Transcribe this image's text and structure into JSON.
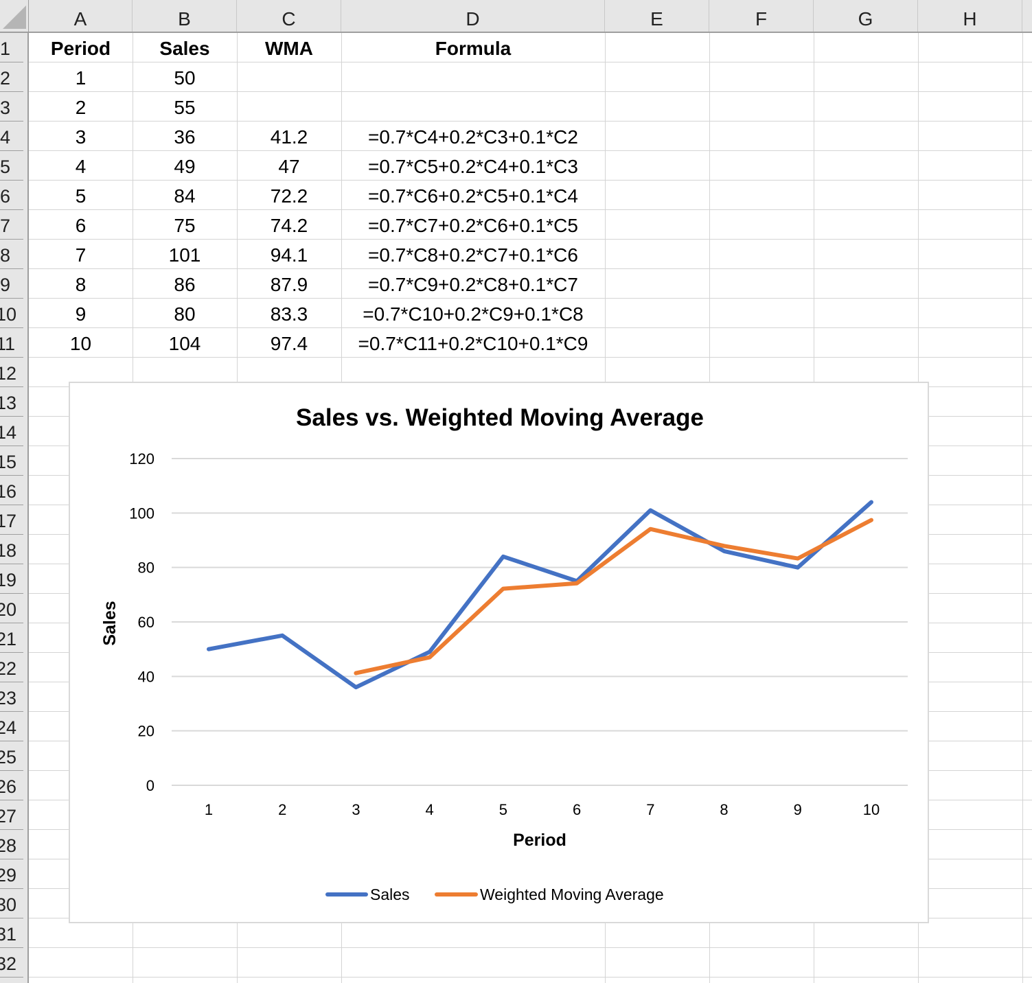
{
  "spreadsheet": {
    "columns": [
      "A",
      "B",
      "C",
      "D",
      "E",
      "F",
      "G",
      "H"
    ],
    "rows": [
      "1",
      "2",
      "3",
      "4",
      "5",
      "6",
      "7",
      "8",
      "9",
      "10",
      "11",
      "12",
      "13",
      "14",
      "15",
      "16",
      "17",
      "18",
      "19",
      "20",
      "21",
      "22",
      "23",
      "24",
      "25",
      "26",
      "27",
      "28",
      "29",
      "30",
      "31",
      "32"
    ],
    "table": {
      "headers": [
        "Period",
        "Sales",
        "WMA",
        "Formula"
      ],
      "rows": [
        {
          "period": "1",
          "sales": "50",
          "wma": "",
          "formula": ""
        },
        {
          "period": "2",
          "sales": "55",
          "wma": "",
          "formula": ""
        },
        {
          "period": "3",
          "sales": "36",
          "wma": "41.2",
          "formula": "=0.7*C4+0.2*C3+0.1*C2"
        },
        {
          "period": "4",
          "sales": "49",
          "wma": "47",
          "formula": "=0.7*C5+0.2*C4+0.1*C3"
        },
        {
          "period": "5",
          "sales": "84",
          "wma": "72.2",
          "formula": "=0.7*C6+0.2*C5+0.1*C4"
        },
        {
          "period": "6",
          "sales": "75",
          "wma": "74.2",
          "formula": "=0.7*C7+0.2*C6+0.1*C5"
        },
        {
          "period": "7",
          "sales": "101",
          "wma": "94.1",
          "formula": "=0.7*C8+0.2*C7+0.1*C6"
        },
        {
          "period": "8",
          "sales": "86",
          "wma": "87.9",
          "formula": "=0.7*C9+0.2*C8+0.1*C7"
        },
        {
          "period": "9",
          "sales": "80",
          "wma": "83.3",
          "formula": "=0.7*C10+0.2*C9+0.1*C8"
        },
        {
          "period": "10",
          "sales": "104",
          "wma": "97.4",
          "formula": "=0.7*C11+0.2*C10+0.1*C9"
        }
      ]
    }
  },
  "colors": {
    "sales": "#4472C4",
    "wma": "#ED7D31",
    "gridline": "#d9d9d9"
  },
  "chart_data": {
    "type": "line",
    "title": "Sales vs. Weighted Moving Average",
    "xlabel": "Period",
    "ylabel": "Sales",
    "categories": [
      "1",
      "2",
      "3",
      "4",
      "5",
      "6",
      "7",
      "8",
      "9",
      "10"
    ],
    "series": [
      {
        "name": "Sales",
        "color": "#4472C4",
        "values": [
          50,
          55,
          36,
          49,
          84,
          75,
          101,
          86,
          80,
          104
        ]
      },
      {
        "name": "Weighted Moving Average",
        "color": "#ED7D31",
        "values": [
          null,
          null,
          41.2,
          47,
          72.2,
          74.2,
          94.1,
          87.9,
          83.3,
          97.4
        ]
      }
    ],
    "yticks": [
      "0",
      "20",
      "40",
      "60",
      "80",
      "100",
      "120"
    ],
    "ylim": [
      0,
      120
    ],
    "grid": true,
    "legend_position": "bottom"
  }
}
